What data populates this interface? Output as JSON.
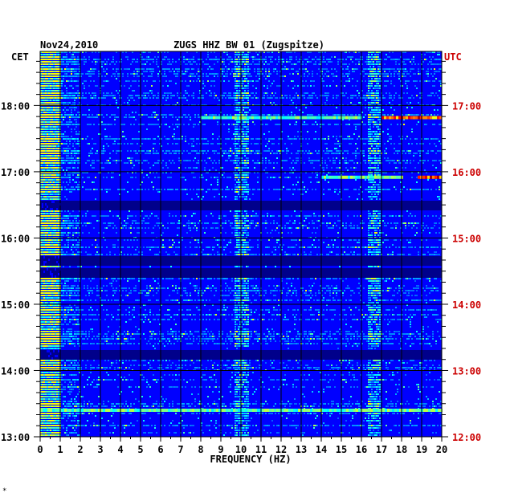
{
  "chart_data": {
    "type": "heatmap",
    "date": "Nov24,2010",
    "title": "ZUGS HHZ BW 01 (Zugspitze)",
    "left_timezone": "CET",
    "right_timezone": "UTC",
    "xlabel": "FREQUENCY (HZ)",
    "xlim": [
      0,
      20
    ],
    "x_ticks": [
      "0",
      "1",
      "2",
      "3",
      "4",
      "5",
      "6",
      "7",
      "8",
      "9",
      "10",
      "11",
      "12",
      "13",
      "14",
      "15",
      "16",
      "17",
      "18",
      "19",
      "20"
    ],
    "y_ticks_cet": [
      "18:00",
      "17:00",
      "16:00",
      "15:00",
      "14:00",
      "13:00"
    ],
    "y_ticks_utc": [
      "17:00",
      "16:00",
      "15:00",
      "14:00",
      "13:00",
      "12:00"
    ],
    "time_range_cet": [
      "13:00",
      "18:49"
    ],
    "grid": true,
    "colormap": "jet",
    "colors": {
      "background": "#0000ff",
      "low": "#00008b",
      "grid": "#000000",
      "utc_labels": "#cc0000"
    },
    "bright_bands": [
      {
        "time_cet": "17:49",
        "freq_range": [
          17,
          20
        ],
        "level": "high"
      },
      {
        "time_cet": "16:55",
        "freq_range": [
          18.8,
          20
        ],
        "level": "high"
      },
      {
        "time_cet": "17:49",
        "freq_range": [
          8,
          16
        ],
        "level": "medium"
      },
      {
        "time_cet": "16:55",
        "freq_range": [
          14,
          18
        ],
        "level": "medium"
      },
      {
        "time_cet": "13:24",
        "freq_range": [
          0,
          20
        ],
        "level": "medium"
      }
    ],
    "quiet_bands": [
      "15:40",
      "15:30",
      "16:30",
      "14:15"
    ]
  },
  "corner_mark": "*"
}
